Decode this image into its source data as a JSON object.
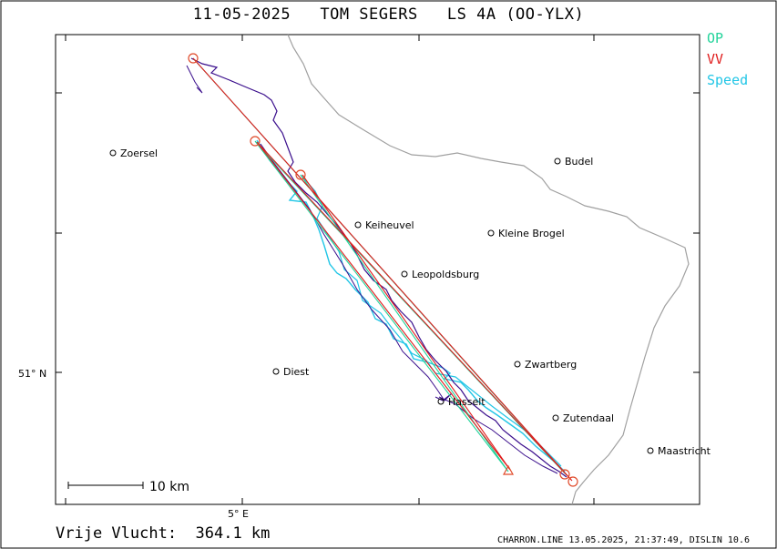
{
  "header": {
    "title": "11-05-2025   TOM SEGERS   LS 4A (OO-YLX)"
  },
  "legend": {
    "items": [
      {
        "label": "OP",
        "color": "#22d39a"
      },
      {
        "label": "VV",
        "color": "#e01c1c"
      },
      {
        "label": "Speed",
        "color": "#22c6e6"
      }
    ]
  },
  "map": {
    "axis_labels": {
      "lat": "51° N",
      "lon": "5° E"
    },
    "scale_bar": {
      "label": "10 km"
    },
    "places": [
      {
        "name": "Zoersel"
      },
      {
        "name": "Budel"
      },
      {
        "name": "Keiheuvel"
      },
      {
        "name": "Kleine Brogel"
      },
      {
        "name": "Leopoldsburg"
      },
      {
        "name": "Zwartberg"
      },
      {
        "name": "Diest"
      },
      {
        "name": "Hasselt"
      },
      {
        "name": "Zutendaal"
      },
      {
        "name": "Maastricht"
      }
    ],
    "colors": {
      "track": "#3a0e8c",
      "speed": "#22c6e6",
      "op": "#22d39a",
      "vv": "#e01c1c",
      "border": "#a0a0a0",
      "turnpoint": "#e04a2a"
    }
  },
  "footer": {
    "distance": "Vrije Vlucht:  364.1 km",
    "credit": "CHARRON.LINE 13.05.2025, 21:37:49, DISLIN 10.6"
  }
}
